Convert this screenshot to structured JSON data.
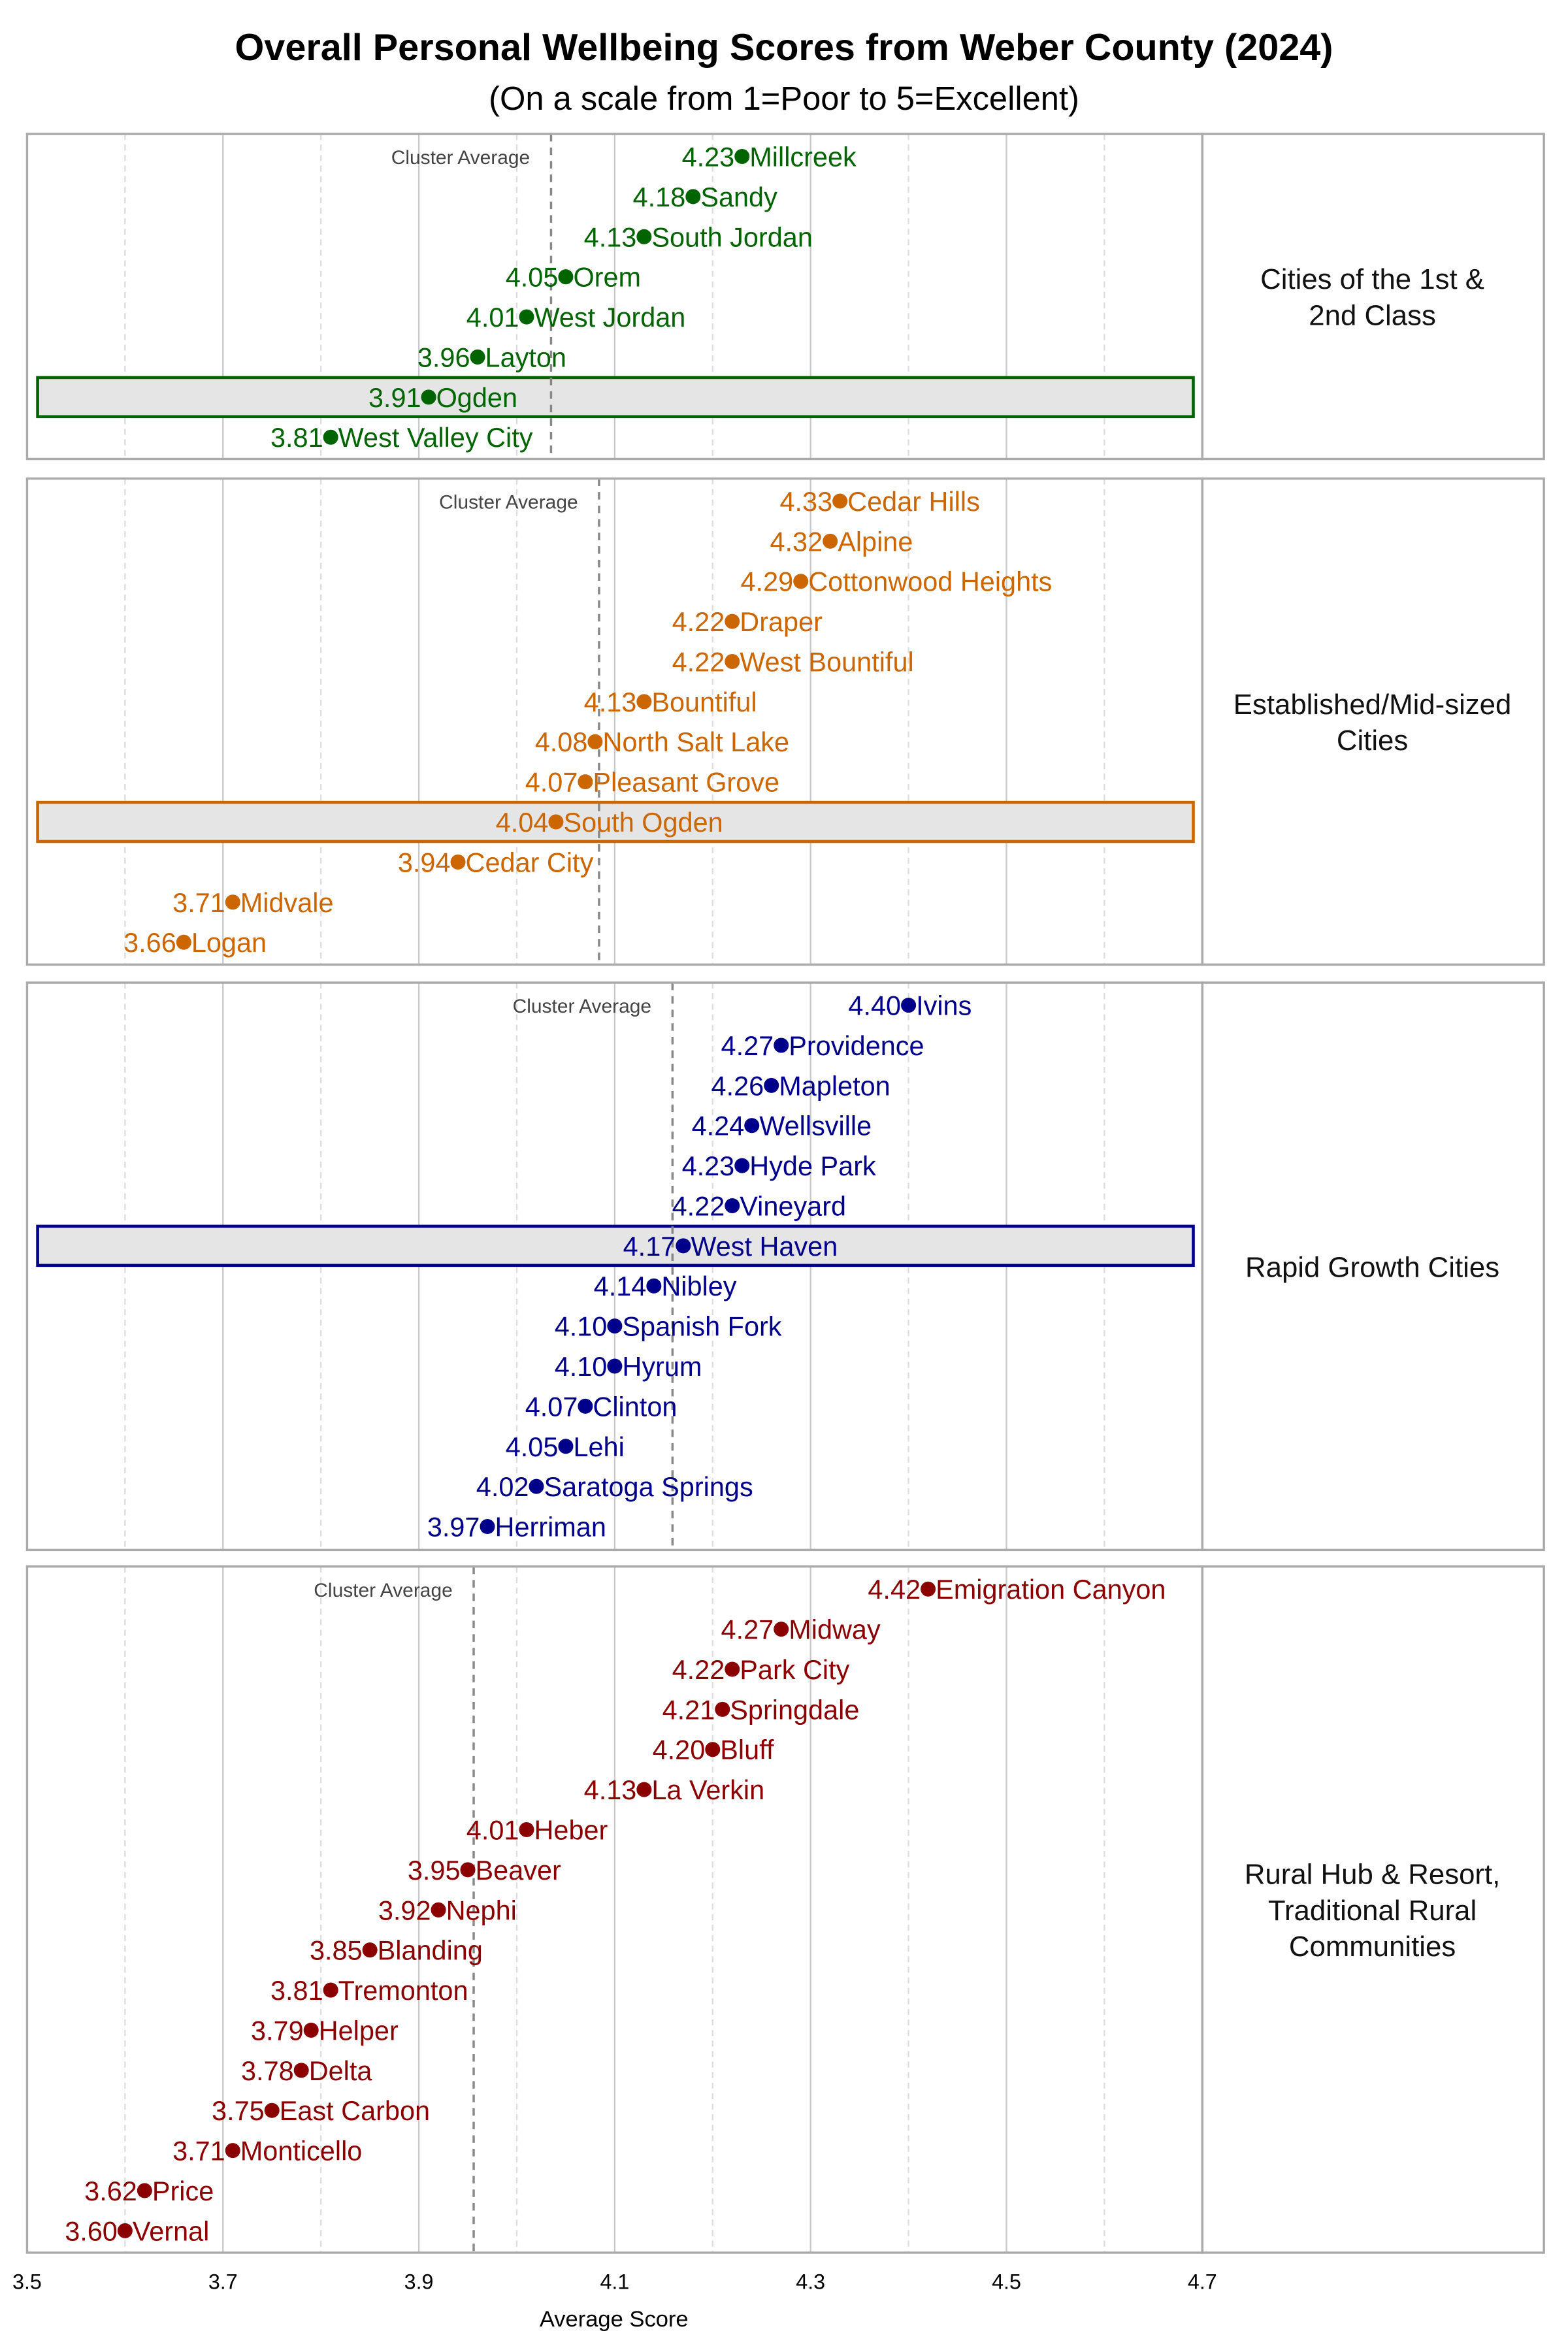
{
  "chart_data": {
    "type": "scatter",
    "title": "Overall Personal Wellbeing Scores from Weber County (2024)",
    "subtitle": "(On a scale from 1=Poor to 5=Excellent)",
    "xlabel": "Average Score",
    "xlim": [
      3.5,
      4.7
    ],
    "x_ticks": [
      "3.5",
      "3.7",
      "3.9",
      "4.1",
      "4.3",
      "4.5",
      "4.7"
    ],
    "grid": true,
    "average_label": "Cluster Average",
    "panels": [
      {
        "name": "Cities of the 1st & 2nd Class",
        "name_lines": [
          "Cities of the 1st &",
          "2nd Class"
        ],
        "color": "#006400",
        "cluster_average": 4.035,
        "highlight": "Ogden",
        "points": [
          {
            "city": "Millcreek",
            "value": 4.23
          },
          {
            "city": "Sandy",
            "value": 4.18
          },
          {
            "city": "South Jordan",
            "value": 4.13
          },
          {
            "city": "Orem",
            "value": 4.05
          },
          {
            "city": "West Jordan",
            "value": 4.01
          },
          {
            "city": "Layton",
            "value": 3.96
          },
          {
            "city": "Ogden",
            "value": 3.91
          },
          {
            "city": "West Valley City",
            "value": 3.81
          }
        ]
      },
      {
        "name": "Established/Mid-sized Cities",
        "name_lines": [
          "Established/Mid-sized",
          "Cities"
        ],
        "color": "#CC6600",
        "cluster_average": 4.084,
        "highlight": "South Ogden",
        "points": [
          {
            "city": "Cedar Hills",
            "value": 4.33
          },
          {
            "city": "Alpine",
            "value": 4.32
          },
          {
            "city": "Cottonwood Heights",
            "value": 4.29
          },
          {
            "city": "Draper",
            "value": 4.22
          },
          {
            "city": "West Bountiful",
            "value": 4.22
          },
          {
            "city": "Bountiful",
            "value": 4.13
          },
          {
            "city": "North Salt Lake",
            "value": 4.08
          },
          {
            "city": "Pleasant Grove",
            "value": 4.07
          },
          {
            "city": "South Ogden",
            "value": 4.04
          },
          {
            "city": "Cedar City",
            "value": 3.94
          },
          {
            "city": "Midvale",
            "value": 3.71
          },
          {
            "city": "Logan",
            "value": 3.66
          }
        ]
      },
      {
        "name": "Rapid Growth Cities",
        "name_lines": [
          "Rapid Growth Cities"
        ],
        "color": "#00008B",
        "cluster_average": 4.159,
        "highlight": "West Haven",
        "points": [
          {
            "city": "Ivins",
            "value": 4.4
          },
          {
            "city": "Providence",
            "value": 4.27
          },
          {
            "city": "Mapleton",
            "value": 4.26
          },
          {
            "city": "Wellsville",
            "value": 4.24
          },
          {
            "city": "Hyde Park",
            "value": 4.23
          },
          {
            "city": "Vineyard",
            "value": 4.22
          },
          {
            "city": "West Haven",
            "value": 4.17
          },
          {
            "city": "Nibley",
            "value": 4.14
          },
          {
            "city": "Spanish Fork",
            "value": 4.1
          },
          {
            "city": "Hyrum",
            "value": 4.1
          },
          {
            "city": "Clinton",
            "value": 4.07
          },
          {
            "city": "Lehi",
            "value": 4.05
          },
          {
            "city": "Saratoga Springs",
            "value": 4.02
          },
          {
            "city": "Herriman",
            "value": 3.97
          }
        ]
      },
      {
        "name": "Rural Hub & Resort, Traditional Rural Communities",
        "name_lines": [
          "Rural Hub & Resort,",
          "Traditional Rural",
          "Communities"
        ],
        "color": "#8B0000",
        "cluster_average": 3.956,
        "highlight": "",
        "points": [
          {
            "city": "Emigration Canyon",
            "value": 4.42
          },
          {
            "city": "Midway",
            "value": 4.27
          },
          {
            "city": "Park City",
            "value": 4.22
          },
          {
            "city": "Springdale",
            "value": 4.21
          },
          {
            "city": "Bluff",
            "value": 4.2
          },
          {
            "city": "La Verkin",
            "value": 4.13
          },
          {
            "city": "Heber",
            "value": 4.01
          },
          {
            "city": "Beaver",
            "value": 3.95
          },
          {
            "city": "Nephi",
            "value": 3.92
          },
          {
            "city": "Blanding",
            "value": 3.85
          },
          {
            "city": "Tremonton",
            "value": 3.81
          },
          {
            "city": "Helper",
            "value": 3.79
          },
          {
            "city": "Delta",
            "value": 3.78
          },
          {
            "city": "East Carbon",
            "value": 3.75
          },
          {
            "city": "Monticello",
            "value": 3.71
          },
          {
            "city": "Price",
            "value": 3.62
          },
          {
            "city": "Vernal",
            "value": 3.6
          }
        ]
      }
    ]
  }
}
